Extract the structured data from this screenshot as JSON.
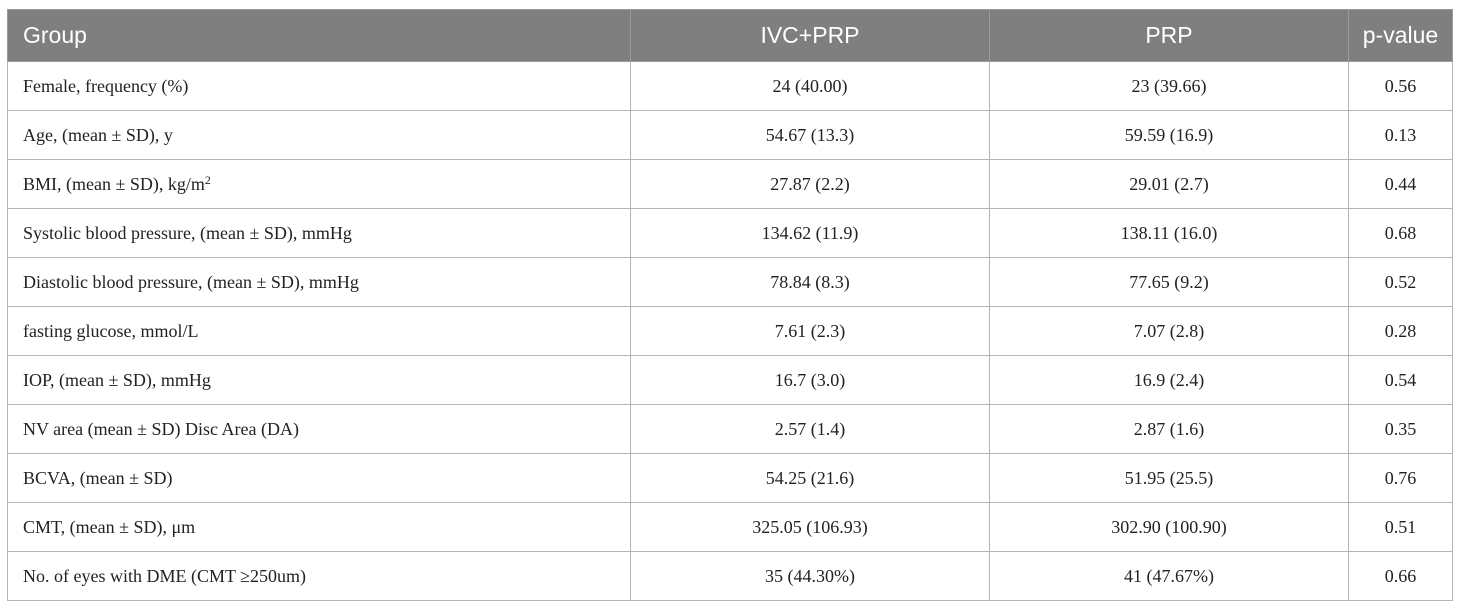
{
  "table": {
    "headers": [
      "Group",
      "IVC+PRP",
      "PRP",
      "p-value"
    ],
    "rows": [
      {
        "label": "Female, frequency (%)",
        "sup": "",
        "ivc_prp": "24 (40.00)",
        "prp": "23 (39.66)",
        "p": "0.56"
      },
      {
        "label": "Age, (mean ± SD), y",
        "sup": "",
        "ivc_prp": "54.67 (13.3)",
        "prp": "59.59 (16.9)",
        "p": "0.13"
      },
      {
        "label": "BMI, (mean ± SD), kg/m",
        "sup": "2",
        "ivc_prp": "27.87 (2.2)",
        "prp": "29.01 (2.7)",
        "p": "0.44"
      },
      {
        "label": "Systolic blood pressure, (mean ± SD), mmHg",
        "sup": "",
        "ivc_prp": "134.62 (11.9)",
        "prp": "138.11 (16.0)",
        "p": "0.68"
      },
      {
        "label": "Diastolic blood pressure, (mean ± SD), mmHg",
        "sup": "",
        "ivc_prp": "78.84 (8.3)",
        "prp": "77.65 (9.2)",
        "p": "0.52"
      },
      {
        "label": "fasting glucose, mmol/L",
        "sup": "",
        "ivc_prp": "7.61 (2.3)",
        "prp": "7.07 (2.8)",
        "p": "0.28"
      },
      {
        "label": "IOP, (mean ± SD), mmHg",
        "sup": "",
        "ivc_prp": "16.7 (3.0)",
        "prp": "16.9 (2.4)",
        "p": "0.54"
      },
      {
        "label": "NV area (mean ± SD) Disc Area (DA)",
        "sup": "",
        "ivc_prp": "2.57 (1.4)",
        "prp": "2.87 (1.6)",
        "p": "0.35"
      },
      {
        "label": "BCVA, (mean ± SD)",
        "sup": "",
        "ivc_prp": "54.25 (21.6)",
        "prp": "51.95 (25.5)",
        "p": "0.76"
      },
      {
        "label": "CMT, (mean ± SD), μm",
        "sup": "",
        "ivc_prp": "325.05 (106.93)",
        "prp": "302.90 (100.90)",
        "p": "0.51"
      },
      {
        "label": "No. of eyes with DME (CMT ≥250um)",
        "sup": "",
        "ivc_prp": "35 (44.30%)",
        "prp": "41 (47.67%)",
        "p": "0.66"
      }
    ]
  }
}
